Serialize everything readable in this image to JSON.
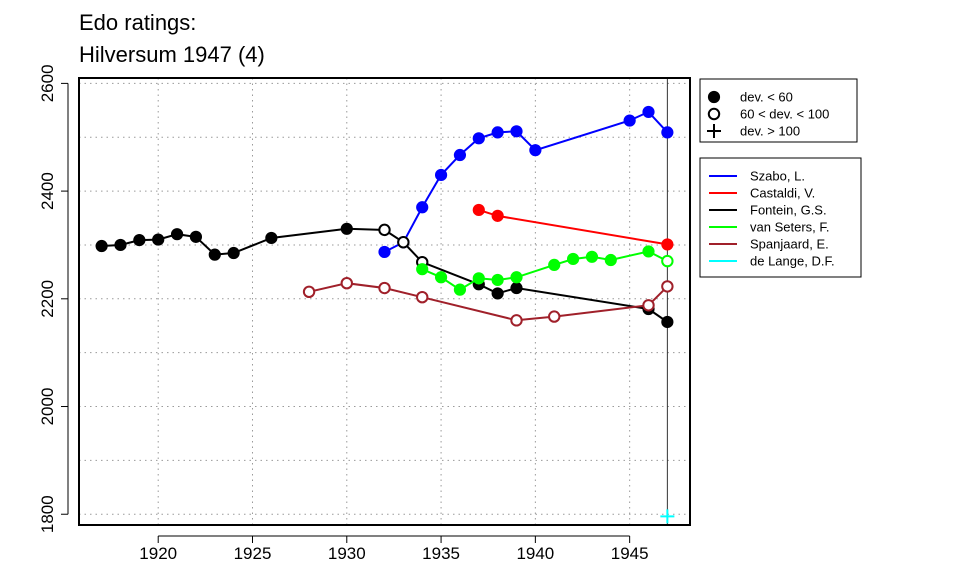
{
  "chart_data": {
    "type": "line",
    "title": [
      "Edo ratings:",
      "Hilversum 1947 (4)"
    ],
    "xlabel": "",
    "ylabel": "",
    "xlim": [
      1915.8,
      1948.2
    ],
    "ylim": [
      1780,
      2610
    ],
    "x_ticks": [
      1920,
      1925,
      1930,
      1935,
      1940,
      1945
    ],
    "y_ticks": [
      1800,
      2000,
      2200,
      2400,
      2600
    ],
    "grid": true,
    "marker_vline_x": 1947,
    "marker_legend": [
      {
        "symbol": "filled",
        "label": "dev. < 60"
      },
      {
        "symbol": "open",
        "label": "60 < dev. < 100"
      },
      {
        "symbol": "plus",
        "label": "dev. > 100"
      }
    ],
    "series": [
      {
        "name": "Szabo, L.",
        "color": "#0000ff",
        "points": [
          {
            "x": 1932,
            "y": 2287,
            "m": "filled"
          },
          {
            "x": 1933,
            "y": 2305,
            "m": "filled"
          },
          {
            "x": 1934,
            "y": 2370,
            "m": "filled"
          },
          {
            "x": 1935,
            "y": 2430,
            "m": "filled"
          },
          {
            "x": 1936,
            "y": 2467,
            "m": "filled"
          },
          {
            "x": 1937,
            "y": 2498,
            "m": "filled"
          },
          {
            "x": 1938,
            "y": 2509,
            "m": "filled"
          },
          {
            "x": 1939,
            "y": 2511,
            "m": "filled"
          },
          {
            "x": 1940,
            "y": 2476,
            "m": "filled"
          },
          {
            "x": 1945,
            "y": 2531,
            "m": "filled"
          },
          {
            "x": 1946,
            "y": 2547,
            "m": "filled"
          },
          {
            "x": 1947,
            "y": 2509,
            "m": "filled"
          }
        ]
      },
      {
        "name": "Castaldi, V.",
        "color": "#ff0000",
        "points": [
          {
            "x": 1937,
            "y": 2365,
            "m": "filled"
          },
          {
            "x": 1938,
            "y": 2354,
            "m": "filled"
          },
          {
            "x": 1947,
            "y": 2301,
            "m": "filled"
          }
        ]
      },
      {
        "name": "Fontein, G.S.",
        "color": "#000000",
        "points": [
          {
            "x": 1917,
            "y": 2298,
            "m": "filled"
          },
          {
            "x": 1918,
            "y": 2300,
            "m": "filled"
          },
          {
            "x": 1919,
            "y": 2309,
            "m": "filled"
          },
          {
            "x": 1920,
            "y": 2310,
            "m": "filled"
          },
          {
            "x": 1921,
            "y": 2320,
            "m": "filled"
          },
          {
            "x": 1922,
            "y": 2315,
            "m": "filled"
          },
          {
            "x": 1923,
            "y": 2282,
            "m": "filled"
          },
          {
            "x": 1924,
            "y": 2285,
            "m": "filled"
          },
          {
            "x": 1926,
            "y": 2313,
            "m": "filled"
          },
          {
            "x": 1930,
            "y": 2330,
            "m": "filled"
          },
          {
            "x": 1932,
            "y": 2328,
            "m": "open"
          },
          {
            "x": 1933,
            "y": 2305,
            "m": "open"
          },
          {
            "x": 1934,
            "y": 2268,
            "m": "open"
          },
          {
            "x": 1937,
            "y": 2227,
            "m": "filled"
          },
          {
            "x": 1938,
            "y": 2210,
            "m": "filled"
          },
          {
            "x": 1939,
            "y": 2220,
            "m": "filled"
          },
          {
            "x": 1946,
            "y": 2181,
            "m": "filled"
          },
          {
            "x": 1947,
            "y": 2157,
            "m": "filled"
          }
        ]
      },
      {
        "name": "van Seters, F.",
        "color": "#00ff00",
        "points": [
          {
            "x": 1934,
            "y": 2255,
            "m": "filled"
          },
          {
            "x": 1935,
            "y": 2240,
            "m": "filled"
          },
          {
            "x": 1936,
            "y": 2217,
            "m": "filled"
          },
          {
            "x": 1937,
            "y": 2238,
            "m": "filled"
          },
          {
            "x": 1938,
            "y": 2235,
            "m": "filled"
          },
          {
            "x": 1939,
            "y": 2240,
            "m": "filled"
          },
          {
            "x": 1941,
            "y": 2263,
            "m": "filled"
          },
          {
            "x": 1942,
            "y": 2274,
            "m": "filled"
          },
          {
            "x": 1943,
            "y": 2278,
            "m": "filled"
          },
          {
            "x": 1944,
            "y": 2272,
            "m": "filled"
          },
          {
            "x": 1946,
            "y": 2288,
            "m": "filled"
          },
          {
            "x": 1947,
            "y": 2270,
            "m": "open"
          }
        ]
      },
      {
        "name": "Spanjaard, E.",
        "color": "#a0202a",
        "points": [
          {
            "x": 1928,
            "y": 2213,
            "m": "open"
          },
          {
            "x": 1930,
            "y": 2229,
            "m": "open"
          },
          {
            "x": 1932,
            "y": 2220,
            "m": "open"
          },
          {
            "x": 1934,
            "y": 2203,
            "m": "open"
          },
          {
            "x": 1939,
            "y": 2160,
            "m": "open"
          },
          {
            "x": 1941,
            "y": 2167,
            "m": "open"
          },
          {
            "x": 1946,
            "y": 2188,
            "m": "open"
          },
          {
            "x": 1947,
            "y": 2223,
            "m": "open"
          }
        ]
      },
      {
        "name": "de Lange, D.F.",
        "color": "#00ffff",
        "points": [
          {
            "x": 1947,
            "y": 1796,
            "m": "plus"
          }
        ]
      }
    ]
  }
}
